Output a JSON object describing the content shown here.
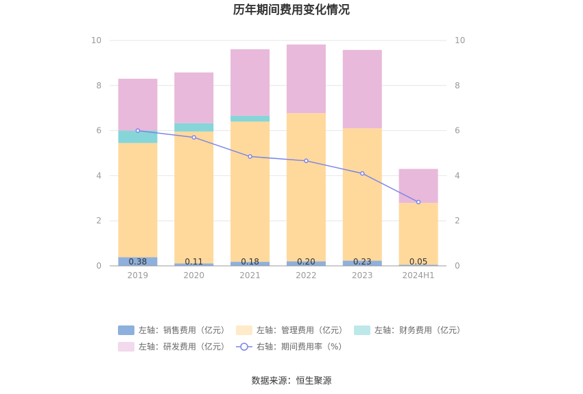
{
  "chart_data": {
    "type": "bar",
    "title": "历年期间费用变化情况",
    "categories": [
      "2019",
      "2020",
      "2021",
      "2022",
      "2023",
      "2024H1"
    ],
    "left_axis": {
      "ylim": [
        0,
        10
      ],
      "ticks": [
        "0",
        "2",
        "4",
        "6",
        "8",
        "10"
      ]
    },
    "right_axis": {
      "ylim": [
        0,
        10
      ],
      "ticks": [
        "0",
        "2",
        "4",
        "6",
        "8",
        "10"
      ]
    },
    "stacked": true,
    "grid": true,
    "series": [
      {
        "name": "左轴：销售费用（亿元）",
        "kind": "bar",
        "axis": "left",
        "color": "#8eb0dc",
        "values": [
          0.38,
          0.11,
          0.18,
          0.2,
          0.23,
          0.05
        ],
        "labels": [
          "0.38",
          "0.11",
          "0.18",
          "0.20",
          "0.23",
          "0.05"
        ]
      },
      {
        "name": "左轴：管理费用（亿元）",
        "kind": "bar",
        "axis": "left",
        "color": "#ffd99c",
        "values": [
          5.07,
          5.85,
          6.22,
          6.57,
          5.87,
          2.74
        ]
      },
      {
        "name": "左轴：财务费用（亿元）",
        "kind": "bar",
        "axis": "left",
        "color": "#86d5d9",
        "values": [
          0.55,
          0.37,
          0.26,
          0.0,
          0.0,
          0.0
        ]
      },
      {
        "name": "左轴：研发费用（亿元）",
        "kind": "bar",
        "axis": "left",
        "color": "#e8b9da",
        "values": [
          2.3,
          2.25,
          2.95,
          3.05,
          3.48,
          1.51
        ]
      },
      {
        "name": "右轴：期间费用率（%）",
        "kind": "line",
        "axis": "right",
        "color": "#7b84e8",
        "values": [
          6.0,
          5.7,
          4.85,
          4.66,
          4.1,
          2.83
        ]
      }
    ],
    "legend_position": "bottom",
    "source": "数据来源：恒生聚源"
  }
}
